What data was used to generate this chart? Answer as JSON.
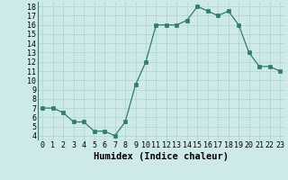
{
  "x": [
    0,
    1,
    2,
    3,
    4,
    5,
    6,
    7,
    8,
    9,
    10,
    11,
    12,
    13,
    14,
    15,
    16,
    17,
    18,
    19,
    20,
    21,
    22,
    23
  ],
  "y": [
    7,
    7,
    6.5,
    5.5,
    5.5,
    4.5,
    4.5,
    4,
    5.5,
    9.5,
    12,
    16,
    16,
    16,
    16.5,
    18,
    17.5,
    17,
    17.5,
    16,
    13,
    11.5,
    11.5,
    11
  ],
  "xlabel": "Humidex (Indice chaleur)",
  "xlim": [
    -0.5,
    23.5
  ],
  "ylim": [
    3.5,
    18.5
  ],
  "yticks": [
    4,
    5,
    6,
    7,
    8,
    9,
    10,
    11,
    12,
    13,
    14,
    15,
    16,
    17,
    18
  ],
  "xticks": [
    0,
    1,
    2,
    3,
    4,
    5,
    6,
    7,
    8,
    9,
    10,
    11,
    12,
    13,
    14,
    15,
    16,
    17,
    18,
    19,
    20,
    21,
    22,
    23
  ],
  "line_color": "#2e7d6e",
  "marker_color": "#2e7d6e",
  "bg_color": "#cdeae8",
  "grid_color": "#b0d4d0",
  "tick_label_fontsize": 6,
  "xlabel_fontsize": 7.5
}
